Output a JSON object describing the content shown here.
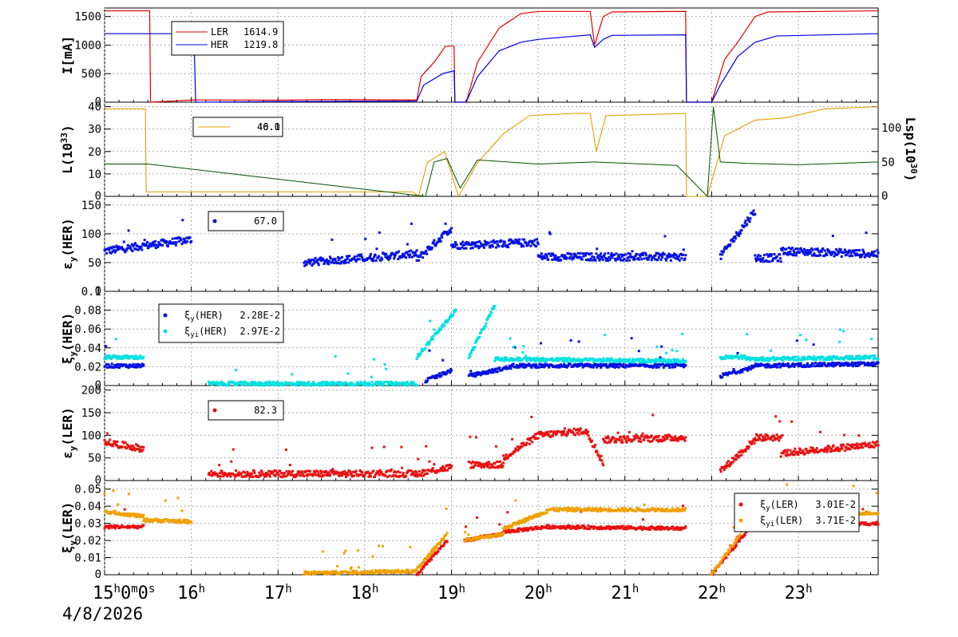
{
  "date_label": "4/8/2026",
  "x_ticks": [
    "15",
    "16",
    "17",
    "18",
    "19",
    "20",
    "21",
    "22",
    "23"
  ],
  "x_first_tick_label": "15h0m0s",
  "colors": {
    "LER": "#e00000",
    "HER": "#0000e0",
    "lum_orange": "#e0a000",
    "lsp_green": "#005000",
    "cyan": "#00e0e0",
    "orange": "#f0a000",
    "red_dot": "#e81010",
    "blue_dot": "#0010e0"
  },
  "panels": [
    {
      "id": "current",
      "ylabel": "I[mA]",
      "yticks": [
        "0",
        "500",
        "1000",
        "1500"
      ],
      "legend": [
        {
          "name": "LER",
          "value": "1614.9"
        },
        {
          "name": "HER",
          "value": "1219.8"
        }
      ]
    },
    {
      "id": "lumi",
      "ylabel": "L(10",
      "ylabel_sup": "33",
      "ylabel_end": ")",
      "yticks": [
        "0",
        "10",
        "20",
        "30",
        "40"
      ],
      "right_label": "Lsp(10",
      "right_sup": "30",
      "right_end": ")",
      "right_ticks": [
        "0",
        "50",
        "100"
      ],
      "legend": [
        {
          "value": "46.1"
        },
        {
          "value": "40.0"
        }
      ]
    },
    {
      "id": "eps_her",
      "ylabel": "ε",
      "ylabel_sub": "y",
      "ylabel_end": "(HER)",
      "yticks": [
        "0",
        "50",
        "100",
        "150"
      ],
      "legend": [
        {
          "value": "67.0"
        }
      ]
    },
    {
      "id": "xi_her",
      "ylabel": "ξ",
      "ylabel_sub": "y",
      "ylabel_end": "(HER)",
      "yticks": [
        "0",
        "0.02",
        "0.04",
        "0.06",
        "0.08",
        "0.1"
      ],
      "legend": [
        {
          "name": "ξ",
          "sub": "y",
          "rest": "(HER)",
          "value": "2.28E-2"
        },
        {
          "name": "ξ",
          "sub": "yi",
          "rest": "(HER)",
          "value": "2.97E-2"
        }
      ]
    },
    {
      "id": "eps_ler",
      "ylabel": "ε",
      "ylabel_sub": "y",
      "ylabel_end": "(LER)",
      "yticks": [
        "0",
        "50",
        "100",
        "150",
        "200"
      ],
      "legend": [
        {
          "value": "82.3"
        }
      ]
    },
    {
      "id": "xi_ler",
      "ylabel": "ξ",
      "ylabel_sub": "y",
      "ylabel_end": "(LER)",
      "yticks": [
        "0",
        "0.01",
        "0.02",
        "0.03",
        "0.04",
        "0.05"
      ],
      "legend": [
        {
          "name": "ξ",
          "sub": "y",
          "rest": "(LER)",
          "value": "3.01E-2"
        },
        {
          "name": "ξ",
          "sub": "yi",
          "rest": "(LER)",
          "value": "3.71E-2"
        }
      ]
    }
  ],
  "chart_data": [
    {
      "type": "line",
      "panel": "current",
      "ylabel": "I[mA]",
      "ylim": [
        0,
        1650
      ],
      "x_unit": "hour of day",
      "xlim": [
        15,
        23.92
      ],
      "series": [
        {
          "name": "LER",
          "points": [
            [
              15,
              1600
            ],
            [
              15.52,
              1600
            ],
            [
              15.53,
              0
            ],
            [
              16.05,
              40
            ],
            [
              17,
              35
            ],
            [
              17.5,
              45
            ],
            [
              18.6,
              40
            ],
            [
              18.65,
              450
            ],
            [
              18.8,
              700
            ],
            [
              18.93,
              980
            ],
            [
              19.03,
              980
            ],
            [
              19.04,
              0
            ],
            [
              19.17,
              0
            ],
            [
              19.3,
              700
            ],
            [
              19.55,
              1300
            ],
            [
              19.8,
              1550
            ],
            [
              20.0,
              1590
            ],
            [
              20.6,
              1590
            ],
            [
              20.65,
              1000
            ],
            [
              20.75,
              1500
            ],
            [
              20.85,
              1580
            ],
            [
              21.7,
              1590
            ],
            [
              21.71,
              0
            ],
            [
              22.0,
              0
            ],
            [
              22.15,
              750
            ],
            [
              22.3,
              1050
            ],
            [
              22.5,
              1500
            ],
            [
              22.65,
              1580
            ],
            [
              23.92,
              1600
            ]
          ]
        },
        {
          "name": "HER",
          "points": [
            [
              15,
              1200
            ],
            [
              16.03,
              1200
            ],
            [
              16.05,
              0
            ],
            [
              17,
              10
            ],
            [
              18.6,
              20
            ],
            [
              18.68,
              300
            ],
            [
              18.9,
              500
            ],
            [
              19.03,
              550
            ],
            [
              19.04,
              0
            ],
            [
              19.17,
              0
            ],
            [
              19.3,
              450
            ],
            [
              19.55,
              900
            ],
            [
              19.8,
              1050
            ],
            [
              20.0,
              1100
            ],
            [
              20.6,
              1180
            ],
            [
              20.65,
              960
            ],
            [
              20.75,
              1100
            ],
            [
              20.85,
              1170
            ],
            [
              21.7,
              1180
            ],
            [
              21.71,
              0
            ],
            [
              22.0,
              0
            ],
            [
              22.1,
              300
            ],
            [
              22.3,
              800
            ],
            [
              22.5,
              1050
            ],
            [
              22.75,
              1160
            ],
            [
              23.92,
              1200
            ]
          ]
        }
      ]
    },
    {
      "type": "line",
      "panel": "lumi",
      "ylabel": "L(10^33)",
      "ylim": [
        0,
        42
      ],
      "y2lim": [
        0,
        137
      ],
      "series": [
        {
          "name": "L",
          "points": [
            [
              15,
              39
            ],
            [
              15.47,
              39
            ],
            [
              15.48,
              2
            ],
            [
              18.55,
              2
            ],
            [
              18.62,
              0
            ],
            [
              18.72,
              15
            ],
            [
              18.92,
              20
            ],
            [
              19.08,
              0
            ],
            [
              19.3,
              15
            ],
            [
              19.6,
              28
            ],
            [
              19.9,
              36
            ],
            [
              20.4,
              37
            ],
            [
              20.6,
              37
            ],
            [
              20.67,
              20
            ],
            [
              20.78,
              36
            ],
            [
              21.7,
              37
            ],
            [
              21.71,
              0
            ],
            [
              21.95,
              0
            ],
            [
              22.15,
              27
            ],
            [
              22.5,
              34
            ],
            [
              22.85,
              35
            ],
            [
              23.3,
              39
            ],
            [
              23.92,
              40
            ]
          ]
        },
        {
          "name": "Lsp",
          "axis": "right",
          "points": [
            [
              15,
              47
            ],
            [
              15.5,
              47
            ],
            [
              18.7,
              0
            ],
            [
              18.8,
              50
            ],
            [
              18.95,
              55
            ],
            [
              19.1,
              12
            ],
            [
              19.3,
              53
            ],
            [
              20.0,
              47
            ],
            [
              20.65,
              50
            ],
            [
              21.6,
              45
            ],
            [
              21.95,
              0
            ],
            [
              22.02,
              130
            ],
            [
              22.1,
              50
            ],
            [
              22.4,
              48
            ],
            [
              23.0,
              46
            ],
            [
              23.92,
              50
            ]
          ]
        }
      ]
    },
    {
      "type": "scatter",
      "panel": "eps_her",
      "ylabel": "ε_y(HER)",
      "ylim": [
        0,
        165
      ],
      "series": [
        {
          "name": "ε_y(HER)",
          "segments": [
            [
              15,
              16.0,
              70,
              90
            ],
            [
              17.3,
              18.6,
              50,
              65
            ],
            [
              18.6,
              19.0,
              55,
              110
            ],
            [
              19.0,
              20.0,
              80,
              85
            ],
            [
              20.0,
              21.7,
              60,
              60
            ],
            [
              22.1,
              22.5,
              60,
              140
            ],
            [
              22.5,
              22.8,
              58,
              58
            ],
            [
              22.8,
              23.92,
              70,
              65
            ]
          ]
        }
      ]
    },
    {
      "type": "scatter",
      "panel": "xi_her",
      "ylabel": "ξ_y(HER)",
      "ylim": [
        0,
        0.1
      ],
      "series": [
        {
          "name": "ξ_y(HER)",
          "segments": [
            [
              15,
              15.45,
              0.021,
              0.021
            ],
            [
              18.7,
              19.0,
              0.005,
              0.016
            ],
            [
              19.2,
              19.7,
              0.01,
              0.02
            ],
            [
              19.7,
              21.7,
              0.021,
              0.021
            ],
            [
              22.1,
              22.5,
              0.01,
              0.02
            ],
            [
              22.5,
              23.92,
              0.021,
              0.023
            ]
          ]
        },
        {
          "name": "ξ_yi(HER)",
          "segments": [
            [
              15,
              15.45,
              0.03,
              0.03
            ],
            [
              16.2,
              18.6,
              0.002,
              0.002
            ],
            [
              18.6,
              19.05,
              0.03,
              0.08
            ],
            [
              19.2,
              19.5,
              0.03,
              0.085
            ],
            [
              19.5,
              21.7,
              0.028,
              0.026
            ],
            [
              22.1,
              22.4,
              0.03,
              0.03
            ],
            [
              22.4,
              23.92,
              0.028,
              0.03
            ]
          ]
        }
      ]
    },
    {
      "type": "scatter",
      "panel": "eps_ler",
      "ylabel": "ε_y(LER)",
      "ylim": [
        0,
        210
      ],
      "series": [
        {
          "name": "ε_y(LER)",
          "segments": [
            [
              15,
              15.45,
              85,
              70
            ],
            [
              16.2,
              18.6,
              15,
              15
            ],
            [
              18.6,
              19.0,
              15,
              30
            ],
            [
              19.2,
              19.6,
              35,
              35
            ],
            [
              19.6,
              20.0,
              50,
              100
            ],
            [
              20.0,
              20.55,
              100,
              110
            ],
            [
              20.55,
              20.75,
              110,
              40
            ],
            [
              20.75,
              21.7,
              90,
              95
            ],
            [
              22.1,
              22.5,
              20,
              90
            ],
            [
              22.5,
              22.8,
              95,
              95
            ],
            [
              22.8,
              23.92,
              60,
              80
            ]
          ]
        }
      ]
    },
    {
      "type": "scatter",
      "panel": "xi_ler",
      "ylabel": "ξ_y(LER)",
      "ylim": [
        0,
        0.055
      ],
      "series": [
        {
          "name": "ξ_y(LER)",
          "segments": [
            [
              15,
              15.45,
              0.028,
              0.028
            ],
            [
              18.6,
              18.95,
              0.0,
              0.02
            ],
            [
              19.15,
              19.6,
              0.02,
              0.024
            ],
            [
              19.6,
              20.1,
              0.025,
              0.028
            ],
            [
              20.1,
              21.7,
              0.028,
              0.027
            ],
            [
              22.0,
              22.4,
              0.0,
              0.025
            ],
            [
              22.4,
              23.92,
              0.028,
              0.03
            ]
          ]
        },
        {
          "name": "ξ_yi(LER)",
          "segments": [
            [
              15,
              15.45,
              0.037,
              0.034
            ],
            [
              15.45,
              16.0,
              0.032,
              0.031
            ],
            [
              17.3,
              18.6,
              0.001,
              0.002
            ],
            [
              18.6,
              18.95,
              0.003,
              0.024
            ],
            [
              19.15,
              19.6,
              0.02,
              0.024
            ],
            [
              19.6,
              20.1,
              0.027,
              0.037
            ],
            [
              20.1,
              21.7,
              0.038,
              0.038
            ],
            [
              22.0,
              22.5,
              0.0,
              0.036
            ],
            [
              22.5,
              23.92,
              0.036,
              0.036
            ]
          ]
        }
      ]
    }
  ]
}
